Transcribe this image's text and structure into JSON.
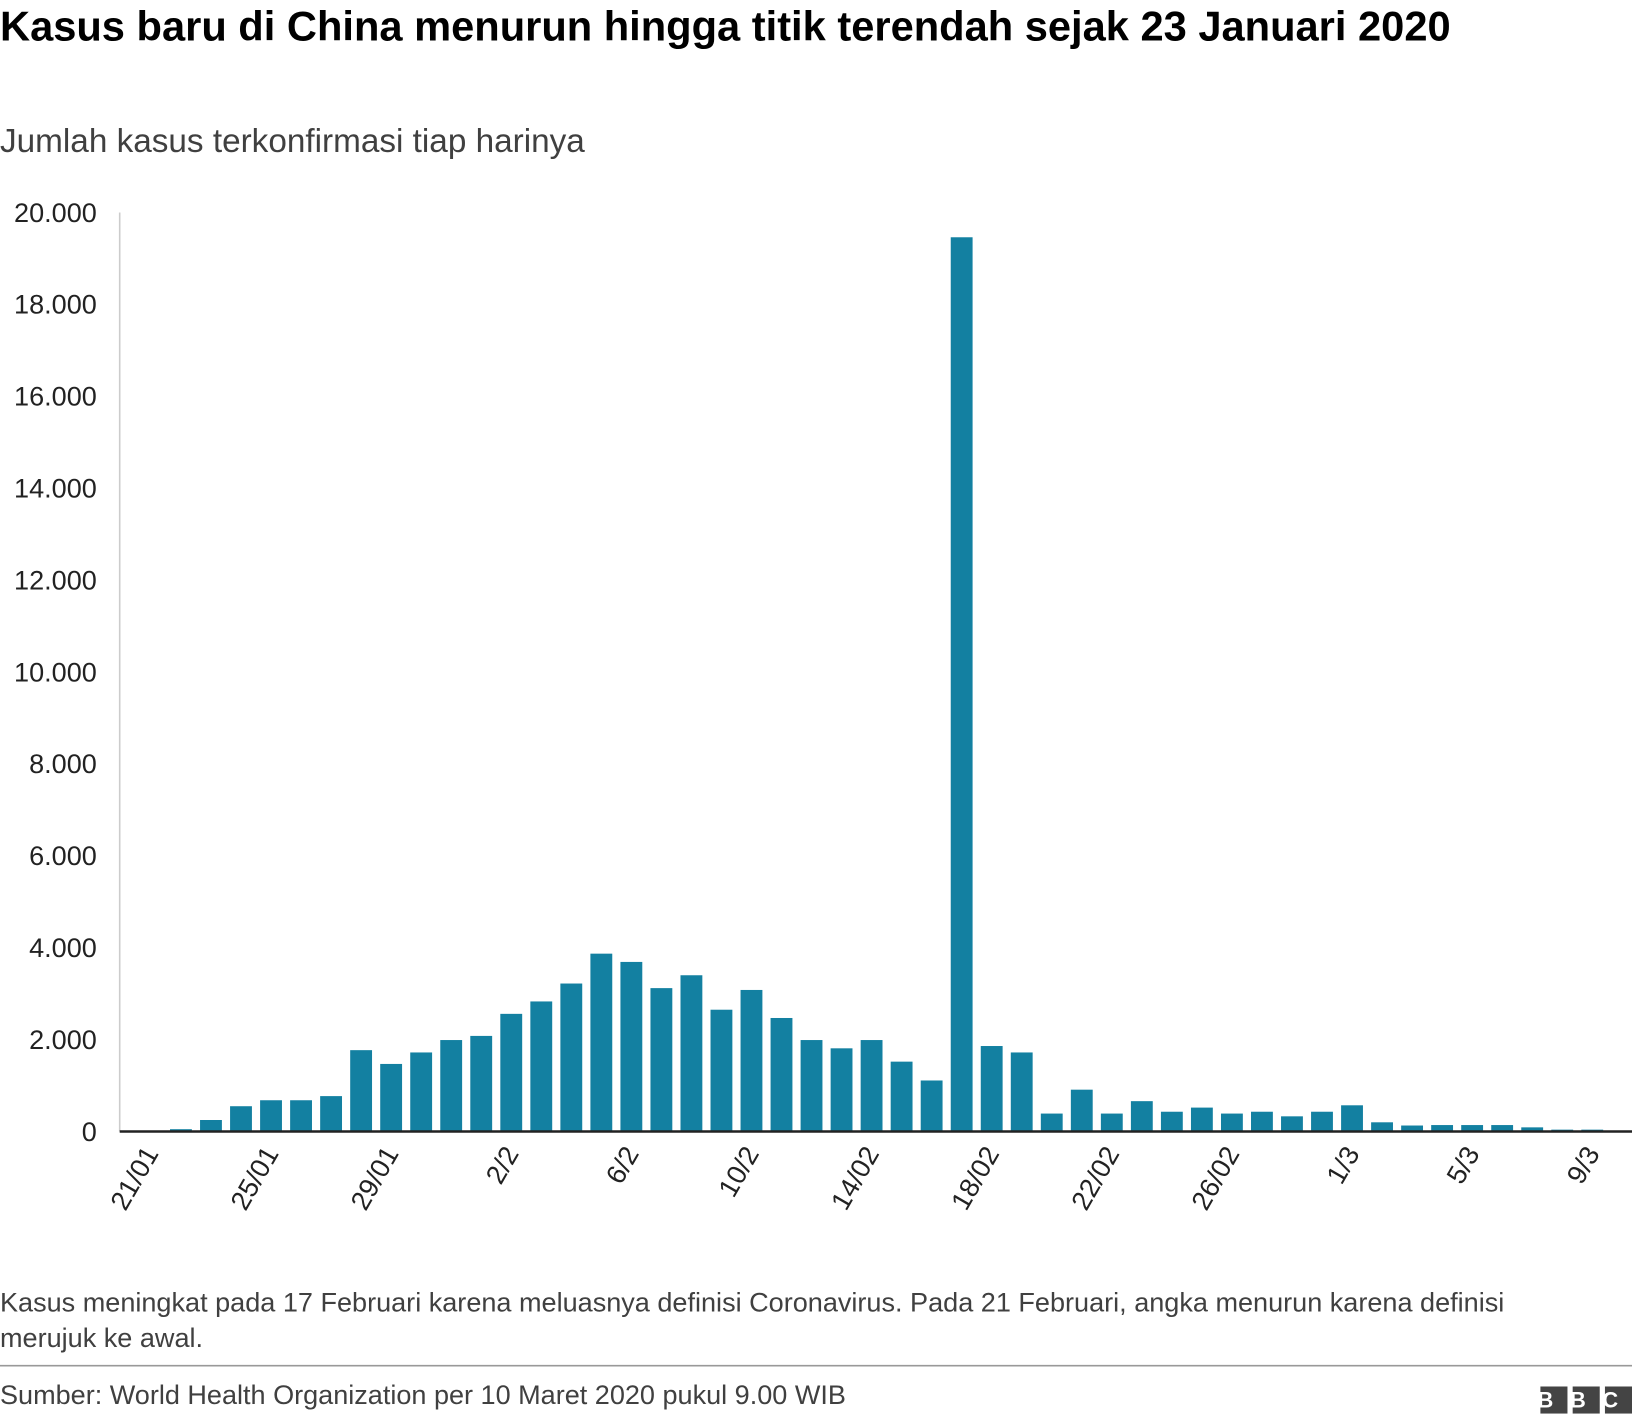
{
  "chart_data": {
    "type": "bar",
    "title": "Kasus baru di China menurun hingga titik terendah sejak 23 Januari 2020",
    "subtitle": "Jumlah kasus terkonfirmasi tiap harinya",
    "note": "Kasus meningkat pada 17 Februari karena meluasnya definisi Coronavirus. Pada 21 Februari, angka menurun karena definisi merujuk ke awal.",
    "source": "Sumber: World Health Organization per 10 Maret 2020 pukul 9.00 WIB",
    "logo": "BBC",
    "color": "#1380a1",
    "categories": [
      "21/01",
      null,
      null,
      null,
      "25/01",
      null,
      null,
      null,
      "29/01",
      null,
      null,
      null,
      "2/2",
      null,
      null,
      null,
      "6/2",
      null,
      null,
      null,
      "10/2",
      null,
      null,
      null,
      "14/02",
      null,
      null,
      null,
      "18/02",
      null,
      null,
      null,
      "22/02",
      null,
      null,
      null,
      "26/02",
      null,
      null,
      null,
      "1/3",
      null,
      null,
      null,
      "5/3",
      null,
      null,
      null,
      "9/3"
    ],
    "values": [
      20,
      50,
      250,
      550,
      680,
      680,
      770,
      1770,
      1470,
      1720,
      1990,
      2080,
      2560,
      2830,
      3220,
      3870,
      3690,
      3120,
      3400,
      2650,
      3080,
      2470,
      1990,
      1810,
      1990,
      1520,
      1110,
      19460,
      1860,
      1720,
      390,
      910,
      390,
      660,
      430,
      520,
      390,
      430,
      330,
      430,
      570,
      200,
      130,
      140,
      140,
      140,
      90,
      40,
      40
    ],
    "ylim": [
      0,
      20000
    ],
    "yticks": [
      0,
      {
        "value": 2000,
        "label": "2.000"
      },
      {
        "value": 4000,
        "label": "4.000"
      },
      {
        "value": 6000,
        "label": "6.000"
      },
      {
        "value": 8000,
        "label": "8.000"
      },
      {
        "value": 10000,
        "label": "10.000"
      },
      {
        "value": 12000,
        "label": "12.000"
      },
      {
        "value": 14000,
        "label": "14.000"
      },
      {
        "value": 16000,
        "label": "16.000"
      },
      {
        "value": 18000,
        "label": "18.000"
      },
      {
        "value": 20000,
        "label": "20.000"
      }
    ],
    "grid": false
  }
}
